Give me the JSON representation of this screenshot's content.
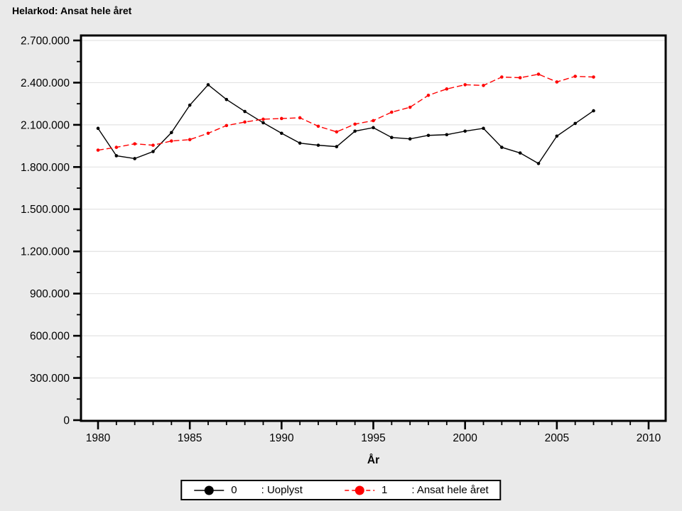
{
  "title": "Helarkod: Ansat hele året",
  "chart_data": {
    "type": "line",
    "title": "Helarkod: Ansat hele året",
    "xlabel": "År",
    "ylabel": "",
    "xlim": [
      1979,
      2011
    ],
    "ylim": [
      0,
      2700000
    ],
    "x_ticks": [
      1980,
      1985,
      1990,
      1995,
      2000,
      2005,
      2010
    ],
    "x_minor_step": 1,
    "y_ticks": [
      0,
      300000,
      600000,
      900000,
      1200000,
      1500000,
      1800000,
      2100000,
      2400000,
      2700000
    ],
    "y_tick_labels": [
      "0",
      "300.000",
      "600.000",
      "900.000",
      "1.200.000",
      "1.500.000",
      "1.800.000",
      "2.100.000",
      "2.400.000",
      "2.700.000"
    ],
    "y_minor_step": 150000,
    "grid": "horizontal",
    "legend_position": "bottom",
    "x": [
      1980,
      1981,
      1982,
      1983,
      1984,
      1985,
      1986,
      1987,
      1988,
      1989,
      1990,
      1991,
      1992,
      1993,
      1994,
      1995,
      1996,
      1997,
      1998,
      1999,
      2000,
      2001,
      2002,
      2003,
      2004,
      2005,
      2006,
      2007
    ],
    "series": [
      {
        "name": "0",
        "label": ": Uoplyst",
        "color": "#000000",
        "line_style": "solid",
        "values": [
          2075000,
          1880000,
          1860000,
          1910000,
          2045000,
          2240000,
          2385000,
          2280000,
          2195000,
          2115000,
          2040000,
          1970000,
          1955000,
          1945000,
          2055000,
          2080000,
          2010000,
          2000000,
          2025000,
          2030000,
          2055000,
          2075000,
          1940000,
          1900000,
          1825000,
          2020000,
          2110000,
          2200000
        ]
      },
      {
        "name": "1",
        "label": ": Ansat hele året",
        "color": "#ff0000",
        "line_style": "dashed",
        "values": [
          1920000,
          1940000,
          1965000,
          1955000,
          1985000,
          1995000,
          2040000,
          2095000,
          2120000,
          2140000,
          2145000,
          2150000,
          2090000,
          2050000,
          2105000,
          2130000,
          2190000,
          2225000,
          2310000,
          2355000,
          2385000,
          2380000,
          2440000,
          2435000,
          2460000,
          2405000,
          2445000,
          2440000
        ]
      }
    ],
    "colors": {
      "background": "#eaeaea",
      "plot_background": "#ffffff",
      "frame": "#000000",
      "gridline": "#e3e3e3"
    }
  }
}
